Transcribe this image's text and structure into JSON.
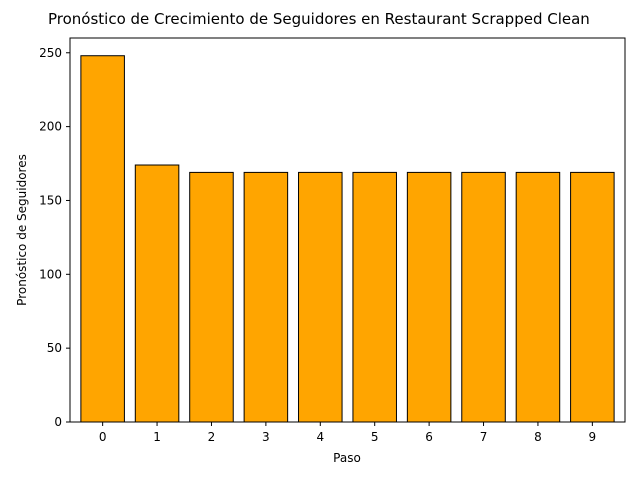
{
  "chart_data": {
    "type": "bar",
    "title": "Pronóstico de Crecimiento de Seguidores en Restaurant Scrapped Clean",
    "xlabel": "Paso",
    "ylabel": "Pronóstico de Seguidores",
    "categories": [
      "0",
      "1",
      "2",
      "3",
      "4",
      "5",
      "6",
      "7",
      "8",
      "9"
    ],
    "values": [
      248,
      174,
      169,
      169,
      169,
      169,
      169,
      169,
      169,
      169
    ],
    "ylim": [
      0,
      260
    ],
    "yticks": [
      0,
      50,
      100,
      150,
      200,
      250
    ],
    "grid": false,
    "bar_color": "#ffa500",
    "edge_color": "#000000"
  }
}
